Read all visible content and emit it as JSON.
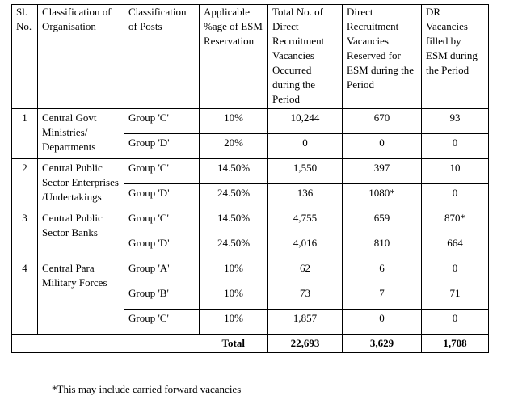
{
  "table": {
    "header": [
      "Sl. No.",
      "Classification of Organisation",
      "Classification of Posts",
      "Applicable %age of ESM Reservation",
      "Total No. of Direct Recruitment Vacancies Occurred during the Period",
      "Direct Recruitment Vacancies Reserved for ESM during the Period",
      "DR Vacancies filled by ESM during the Period"
    ],
    "groups": [
      {
        "sl": "1",
        "org": "Central Govt Ministries/ Departments",
        "posts": [
          {
            "post": "Group 'C'",
            "pct": "10%",
            "total": "10,244",
            "reserved": "670",
            "filled": "93"
          },
          {
            "post": "Group 'D'",
            "pct": "20%",
            "total": "0",
            "reserved": "0",
            "filled": "0"
          }
        ]
      },
      {
        "sl": "2",
        "org": "Central Public Sector Enterprises /Undertakings",
        "posts": [
          {
            "post": "Group 'C'",
            "pct": "14.50%",
            "total": "1,550",
            "reserved": "397",
            "filled": "10"
          },
          {
            "post": "Group 'D'",
            "pct": "24.50%",
            "total": "136",
            "reserved": "1080*",
            "filled": "0"
          }
        ]
      },
      {
        "sl": "3",
        "org": "Central Public Sector Banks",
        "posts": [
          {
            "post": "Group 'C'",
            "pct": "14.50%",
            "total": "4,755",
            "reserved": "659",
            "filled": "870*"
          },
          {
            "post": "Group 'D'",
            "pct": "24.50%",
            "total": "4,016",
            "reserved": "810",
            "filled": "664"
          }
        ]
      },
      {
        "sl": "4",
        "org": "Central Para Military Forces",
        "posts": [
          {
            "post": "Group 'A'",
            "pct": "10%",
            "total": "62",
            "reserved": "6",
            "filled": "0"
          },
          {
            "post": "Group 'B'",
            "pct": "10%",
            "total": "73",
            "reserved": "7",
            "filled": "71"
          },
          {
            "post": "Group 'C'",
            "pct": "10%",
            "total": "1,857",
            "reserved": "0",
            "filled": "0"
          }
        ]
      }
    ],
    "total": {
      "label": "Total",
      "total": "22,693",
      "reserved": "3,629",
      "filled": "1,708"
    }
  },
  "footnote": "*This may include carried forward vacancies"
}
